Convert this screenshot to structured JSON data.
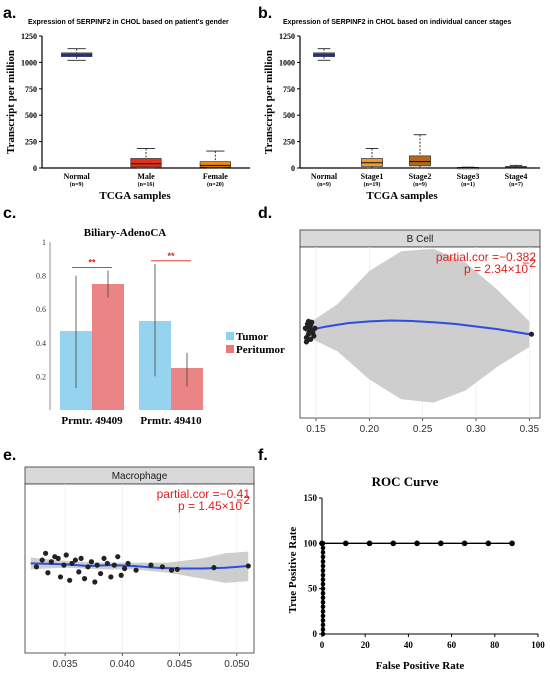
{
  "panel_labels": {
    "a": "a.",
    "b": "b.",
    "c": "c.",
    "d": "d.",
    "e": "e.",
    "f": "f."
  },
  "colors": {
    "normal": "#3c4fd6",
    "male": "#e2321b",
    "female": "#f08a12",
    "stage1": "#f09a28",
    "stage2": "#b06a1f",
    "stage3": "#a8a8a8",
    "stage4": "#e04030",
    "tumor": "#8ccfee",
    "peritumor": "#e9797a",
    "trend": "#2c4de0",
    "band": "#c6c6c6",
    "stat": "#e02020"
  },
  "chart_data": [
    {
      "id": "a",
      "type": "box",
      "title": "Expression of SERPINF2 in CHOL based on patient's gender",
      "xlabel": "TCGA  samples",
      "ylabel": "Transcript per million",
      "ylim": [
        0,
        1250
      ],
      "yticks": [
        0,
        250,
        500,
        750,
        1000,
        1250
      ],
      "categories": [
        "Normal",
        "Male",
        "Female"
      ],
      "counts": [
        "(n=9)",
        "(n=16)",
        "(n=20)"
      ],
      "boxes": [
        {
          "min": 1020,
          "q1": 1055,
          "median": 1070,
          "q3": 1090,
          "max": 1130,
          "color_key": "normal"
        },
        {
          "min": 0,
          "q1": 10,
          "median": 40,
          "q3": 90,
          "max": 185,
          "color_key": "male"
        },
        {
          "min": 0,
          "q1": 8,
          "median": 25,
          "q3": 60,
          "max": 160,
          "color_key": "female"
        }
      ]
    },
    {
      "id": "b",
      "type": "box",
      "title": "Expression of SERPINF2 in CHOL based on individual cancer stages",
      "xlabel": "TCGA  samples",
      "ylabel": "Transcript per million",
      "ylim": [
        0,
        1250
      ],
      "yticks": [
        0,
        250,
        500,
        750,
        1000,
        1250
      ],
      "categories": [
        "Normal",
        "Stage1",
        "Stage2",
        "Stage3",
        "Stage4"
      ],
      "counts": [
        "(n=9)",
        "(n=19)",
        "(n=9)",
        "(n=1)",
        "(n=7)"
      ],
      "boxes": [
        {
          "min": 1020,
          "q1": 1055,
          "median": 1070,
          "q3": 1090,
          "max": 1130,
          "color_key": "normal"
        },
        {
          "min": 0,
          "q1": 15,
          "median": 50,
          "q3": 90,
          "max": 185,
          "color_key": "stage1"
        },
        {
          "min": 0,
          "q1": 20,
          "median": 60,
          "q3": 115,
          "max": 315,
          "color_key": "stage2"
        },
        {
          "min": 0,
          "q1": 2,
          "median": 4,
          "q3": 6,
          "max": 8,
          "color_key": "stage3"
        },
        {
          "min": 0,
          "q1": 3,
          "median": 8,
          "q3": 14,
          "max": 25,
          "color_key": "stage4"
        }
      ]
    },
    {
      "id": "c",
      "type": "bar",
      "title": "Biliary-AdenoCA",
      "ylim": [
        0,
        1
      ],
      "yticks": [
        "0.2",
        "0.4",
        "0.6",
        "0.8",
        "1"
      ],
      "yticks_values": [
        0.2,
        0.4,
        0.6,
        0.8,
        1.0
      ],
      "categories": [
        "Prmtr. 49409",
        "Prmtr. 49410"
      ],
      "series": [
        {
          "name": "Tumor",
          "values": [
            0.47,
            0.53
          ],
          "err_low": [
            0.13,
            0.2
          ],
          "err_high": [
            0.8,
            0.87
          ],
          "color_key": "tumor"
        },
        {
          "name": "Peritumor",
          "values": [
            0.75,
            0.25
          ],
          "err_low": [
            0.67,
            0.14
          ],
          "err_high": [
            0.83,
            0.34
          ],
          "color_key": "peritumor"
        }
      ],
      "significance": [
        "**",
        "**"
      ]
    },
    {
      "id": "d",
      "type": "scatter",
      "strip_label": "B Cell",
      "stat_line1": "partial.cor =−0.382",
      "stat_line2_prefix": "p = 2.34×10",
      "stat_line2_exp": "−2",
      "xlim": [
        0.135,
        0.36
      ],
      "xticks": [
        "0.15",
        "0.20",
        "0.25",
        "0.30",
        "0.35"
      ],
      "xticks_values": [
        0.15,
        0.2,
        0.25,
        0.3,
        0.35
      ],
      "ylim": [
        -1,
        1
      ],
      "points": [
        [
          0.14,
          0.05
        ],
        [
          0.141,
          -0.06
        ],
        [
          0.142,
          0.1
        ],
        [
          0.143,
          -0.02
        ],
        [
          0.144,
          0.06
        ],
        [
          0.145,
          -0.08
        ],
        [
          0.146,
          0.03
        ],
        [
          0.143,
          0.13
        ],
        [
          0.147,
          0.0
        ],
        [
          0.145,
          0.09
        ],
        [
          0.141,
          -0.11
        ],
        [
          0.148,
          -0.04
        ],
        [
          0.144,
          0.01
        ],
        [
          0.146,
          0.12
        ],
        [
          0.142,
          -0.09
        ],
        [
          0.149,
          0.05
        ],
        [
          0.352,
          -0.02
        ]
      ],
      "trend": [
        [
          0.14,
          0.02
        ],
        [
          0.16,
          0.07
        ],
        [
          0.18,
          0.11
        ],
        [
          0.2,
          0.13
        ],
        [
          0.22,
          0.14
        ],
        [
          0.24,
          0.135
        ],
        [
          0.26,
          0.12
        ],
        [
          0.28,
          0.1
        ],
        [
          0.3,
          0.07
        ],
        [
          0.32,
          0.04
        ],
        [
          0.35,
          -0.02
        ]
      ],
      "band_upper": [
        [
          0.14,
          0.08
        ],
        [
          0.17,
          0.33
        ],
        [
          0.2,
          0.72
        ],
        [
          0.23,
          0.95
        ],
        [
          0.26,
          0.98
        ],
        [
          0.29,
          0.82
        ],
        [
          0.32,
          0.5
        ],
        [
          0.35,
          0.13
        ]
      ],
      "band_lower": [
        [
          0.14,
          -0.04
        ],
        [
          0.17,
          -0.22
        ],
        [
          0.2,
          -0.55
        ],
        [
          0.23,
          -0.78
        ],
        [
          0.26,
          -0.82
        ],
        [
          0.29,
          -0.68
        ],
        [
          0.32,
          -0.4
        ],
        [
          0.35,
          -0.17
        ]
      ]
    },
    {
      "id": "e",
      "type": "scatter",
      "strip_label": "Macrophage",
      "stat_line1": "partial.cor =−0.41",
      "stat_line2_prefix": "p = 1.45×10",
      "stat_line2_exp": "−2",
      "xlim": [
        0.0315,
        0.0515
      ],
      "xticks": [
        "0.035",
        "0.040",
        "0.045",
        "0.050"
      ],
      "xticks_values": [
        0.035,
        0.04,
        0.045,
        0.05
      ],
      "ylim": [
        -1,
        1
      ],
      "points": [
        [
          0.0325,
          0.02
        ],
        [
          0.033,
          0.1
        ],
        [
          0.0333,
          0.18
        ],
        [
          0.0335,
          -0.05
        ],
        [
          0.0338,
          0.08
        ],
        [
          0.0341,
          0.14
        ],
        [
          0.0344,
          0.12
        ],
        [
          0.0346,
          -0.1
        ],
        [
          0.0349,
          0.04
        ],
        [
          0.0351,
          0.16
        ],
        [
          0.0354,
          -0.14
        ],
        [
          0.0356,
          0.06
        ],
        [
          0.0359,
          0.1
        ],
        [
          0.0362,
          -0.04
        ],
        [
          0.0364,
          0.12
        ],
        [
          0.0367,
          -0.12
        ],
        [
          0.037,
          0.02
        ],
        [
          0.0373,
          0.08
        ],
        [
          0.0376,
          -0.16
        ],
        [
          0.0378,
          0.04
        ],
        [
          0.0381,
          -0.06
        ],
        [
          0.0384,
          0.12
        ],
        [
          0.0387,
          0.06
        ],
        [
          0.039,
          -0.1
        ],
        [
          0.0393,
          0.04
        ],
        [
          0.0396,
          0.14
        ],
        [
          0.0399,
          -0.08
        ],
        [
          0.0402,
          0.0
        ],
        [
          0.0405,
          0.06
        ],
        [
          0.0412,
          -0.02
        ],
        [
          0.0425,
          0.04
        ],
        [
          0.0435,
          0.02
        ],
        [
          0.0443,
          -0.02
        ],
        [
          0.0448,
          -0.01
        ],
        [
          0.048,
          0.01
        ],
        [
          0.051,
          0.03
        ]
      ],
      "trend": [
        [
          0.032,
          0.06
        ],
        [
          0.035,
          0.05
        ],
        [
          0.037,
          0.03
        ],
        [
          0.039,
          0.04
        ],
        [
          0.041,
          0.03
        ],
        [
          0.043,
          0.01
        ],
        [
          0.045,
          0.0
        ],
        [
          0.047,
          0.0
        ],
        [
          0.049,
          0.01
        ],
        [
          0.051,
          0.03
        ]
      ],
      "band_upper": [
        [
          0.032,
          0.13
        ],
        [
          0.035,
          0.09
        ],
        [
          0.038,
          0.07
        ],
        [
          0.041,
          0.07
        ],
        [
          0.044,
          0.07
        ],
        [
          0.047,
          0.12
        ],
        [
          0.049,
          0.18
        ],
        [
          0.051,
          0.2
        ]
      ],
      "band_lower": [
        [
          0.032,
          -0.01
        ],
        [
          0.035,
          0.01
        ],
        [
          0.038,
          -0.01
        ],
        [
          0.041,
          -0.01
        ],
        [
          0.044,
          -0.05
        ],
        [
          0.047,
          -0.12
        ],
        [
          0.049,
          -0.17
        ],
        [
          0.051,
          -0.15
        ]
      ]
    },
    {
      "id": "f",
      "type": "line",
      "title": "ROC Curve",
      "xlabel": "False Positive Rate",
      "ylabel": "True Positive Rate",
      "xlim": [
        0,
        100
      ],
      "ylim": [
        0,
        150
      ],
      "xticks": [
        "0",
        "20",
        "40",
        "60",
        "80",
        "100"
      ],
      "xticks_values": [
        0,
        20,
        40,
        60,
        80,
        100
      ],
      "yticks": [
        "0",
        "50",
        "100",
        "150"
      ],
      "yticks_values": [
        0,
        50,
        100,
        150
      ],
      "vertical_points": [
        [
          0,
          0
        ],
        [
          0,
          5
        ],
        [
          0,
          10
        ],
        [
          0,
          15
        ],
        [
          0,
          20
        ],
        [
          0,
          25
        ],
        [
          0,
          30
        ],
        [
          0,
          35
        ],
        [
          0,
          40
        ],
        [
          0,
          45
        ],
        [
          0,
          50
        ],
        [
          0,
          55
        ],
        [
          0,
          60
        ],
        [
          0,
          65
        ],
        [
          0,
          70
        ],
        [
          0,
          75
        ],
        [
          0,
          80
        ],
        [
          0,
          85
        ],
        [
          0,
          90
        ],
        [
          0,
          95
        ],
        [
          0,
          100
        ]
      ],
      "top_points": [
        [
          0,
          100
        ],
        [
          11,
          100
        ],
        [
          22,
          100
        ],
        [
          33,
          100
        ],
        [
          44,
          100
        ],
        [
          55,
          100
        ],
        [
          66,
          100
        ],
        [
          77,
          100
        ],
        [
          88,
          100
        ]
      ]
    }
  ]
}
